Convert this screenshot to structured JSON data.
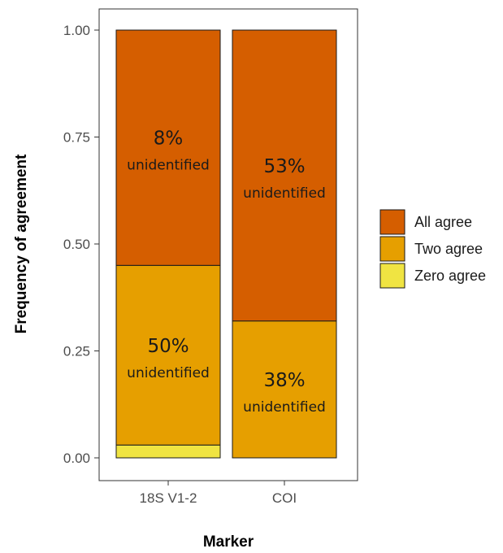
{
  "chart_data": {
    "type": "bar",
    "stacked": true,
    "title": "",
    "xlabel": "Marker",
    "ylabel": "Frequency of agreement",
    "ylim": [
      0,
      1
    ],
    "yticks": [
      "0.00",
      "0.25",
      "0.50",
      "0.75",
      "1.00"
    ],
    "categories": [
      "18S V1-2",
      "COI"
    ],
    "series": [
      {
        "name": "Zero agree",
        "color": "#f0e442",
        "values": [
          0.03,
          0.0
        ]
      },
      {
        "name": "Two agree",
        "color": "#e69f00",
        "values": [
          0.42,
          0.32
        ]
      },
      {
        "name": "All agree",
        "color": "#d55e00",
        "values": [
          0.55,
          0.68
        ]
      }
    ],
    "legend": {
      "placement": "right",
      "order": [
        "All agree",
        "Two agree",
        "Zero agree"
      ]
    },
    "annotations": [
      {
        "category": "18S V1-2",
        "series": "All agree",
        "pct": "8%",
        "text": "unidentified"
      },
      {
        "category": "18S V1-2",
        "series": "Two agree",
        "pct": "50%",
        "text": "unidentified"
      },
      {
        "category": "COI",
        "series": "All agree",
        "pct": "53%",
        "text": "unidentified"
      },
      {
        "category": "COI",
        "series": "Two agree",
        "pct": "38%",
        "text": "unidentified"
      }
    ],
    "grid": false
  }
}
